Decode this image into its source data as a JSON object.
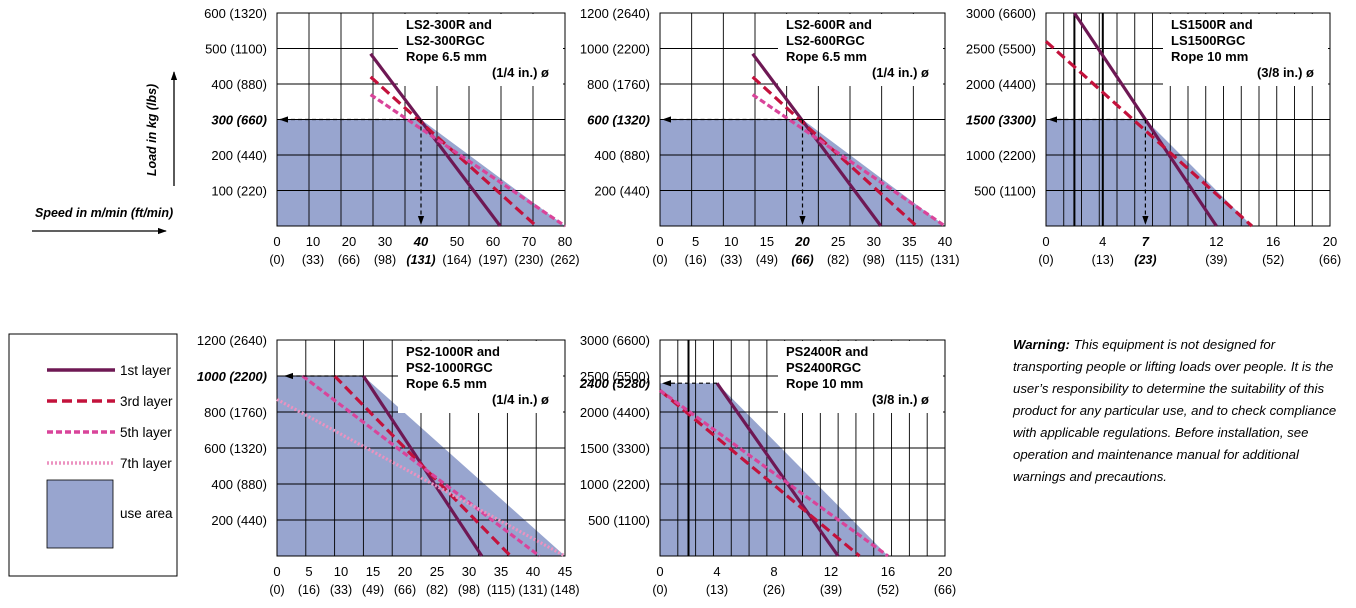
{
  "colors": {
    "use_area": "#98a5cf",
    "layer1": "#6e1854",
    "layer3": "#c3123c",
    "layer5": "#d9449a",
    "layer7": "#ec92c0",
    "grid": "#000000"
  },
  "labels": {
    "speed_axis": "Speed in m/min (ft/min)",
    "load_axis": "Load in kg (lbs)"
  },
  "legend": {
    "items": [
      {
        "label": "1st layer",
        "layer": "layer1"
      },
      {
        "label": "3rd layer",
        "layer": "layer3"
      },
      {
        "label": "5th layer",
        "layer": "layer5"
      },
      {
        "label": "7th layer",
        "layer": "layer7"
      }
    ],
    "use_area_label": "use area"
  },
  "warning": {
    "lead": "Warning:",
    "body": " This equipment is not designed for transporting people or lifting loads over people. It is the user’s responsibility to determine the suitability of this product for any particular use, and to check compliance with applicable regulations. Before installation, see operation and maintenance manual for additional warnings and precautions."
  },
  "chart_data": [
    {
      "type": "line",
      "title_lines": [
        "LS2-300R and",
        "LS2-300RGC",
        "Rope 6.5 mm",
        "(1/4 in.) ø"
      ],
      "xlim": [
        0,
        80
      ],
      "ylim": [
        0,
        600
      ],
      "x_ticks": [
        0,
        10,
        20,
        30,
        40,
        50,
        60,
        70,
        80
      ],
      "x_ticks_ft": [
        "(0)",
        "(33)",
        "(66)",
        "(98)",
        "(131)",
        "(164)",
        "(197)",
        "(230)",
        "(262)"
      ],
      "y_ticks": [
        100,
        200,
        300,
        400,
        500,
        600
      ],
      "y_tick_labels": [
        "100 (220)",
        "200 (440)",
        "300 (660)",
        "400 (880)",
        "500 (1100)",
        "600 (1320)"
      ],
      "rated_speed": 40,
      "rated_speed_label": "40",
      "rated_speed_ft": "(131)",
      "rated_load": 300,
      "rated_load_label": "300 (660)",
      "series": [
        {
          "layer": "layer1",
          "x": [
            26,
            62
          ],
          "y": [
            485,
            0
          ]
        },
        {
          "layer": "layer3",
          "x": [
            26,
            72
          ],
          "y": [
            420,
            0
          ]
        },
        {
          "layer": "layer5",
          "x": [
            26,
            80
          ],
          "y": [
            370,
            0
          ]
        }
      ],
      "use_area": {
        "x": [
          0,
          40,
          80
        ],
        "y": [
          300,
          300,
          0
        ]
      }
    },
    {
      "type": "line",
      "title_lines": [
        "LS2-600R and",
        "LS2-600RGC",
        "Rope 6.5 mm",
        "(1/4 in.) ø"
      ],
      "xlim": [
        0,
        40
      ],
      "ylim": [
        0,
        1200
      ],
      "x_ticks": [
        0,
        5,
        10,
        15,
        20,
        25,
        30,
        35,
        40
      ],
      "x_ticks_ft": [
        "(0)",
        "(16)",
        "(33)",
        "(49)",
        "(66)",
        "(82)",
        "(98)",
        "(115)",
        "(131)"
      ],
      "y_ticks": [
        200,
        400,
        600,
        800,
        1000,
        1200
      ],
      "y_tick_labels": [
        "200 (440)",
        "400 (880)",
        "600 (1320)",
        "800 (1760)",
        "1000 (2200)",
        "1200 (2640)"
      ],
      "rated_speed": 20,
      "rated_speed_label": "20",
      "rated_speed_ft": "(66)",
      "rated_load": 600,
      "rated_load_label": "600 (1320)",
      "series": [
        {
          "layer": "layer1",
          "x": [
            13,
            31
          ],
          "y": [
            970,
            0
          ]
        },
        {
          "layer": "layer3",
          "x": [
            13,
            36
          ],
          "y": [
            840,
            0
          ]
        },
        {
          "layer": "layer5",
          "x": [
            13,
            40
          ],
          "y": [
            740,
            0
          ]
        }
      ],
      "use_area": {
        "x": [
          0,
          20,
          40
        ],
        "y": [
          600,
          600,
          0
        ]
      }
    },
    {
      "type": "line",
      "title_lines": [
        "LS1500R and",
        "LS1500RGC",
        "Rope 10 mm",
        "(3/8 in.) ø"
      ],
      "xlim": [
        0,
        20
      ],
      "ylim": [
        0,
        3000
      ],
      "x_ticks": [
        0,
        4,
        7,
        12,
        16,
        20
      ],
      "x_ticks_ft": [
        "(0)",
        "(13)",
        "(23)",
        "(39)",
        "(52)",
        "(66)"
      ],
      "extra_vlines": [
        2,
        4
      ],
      "y_ticks": [
        500,
        1000,
        1500,
        2000,
        2500,
        3000
      ],
      "y_tick_labels": [
        "500 (1100)",
        "1000 (2200)",
        "1500 (3300)",
        "2000 (4400)",
        "2500 (5500)",
        "3000 (6600)"
      ],
      "rated_speed": 7,
      "rated_speed_label": "7",
      "rated_speed_ft": "(23)",
      "rated_load": 1500,
      "rated_load_label": "1500 (3300)",
      "series": [
        {
          "layer": "layer1",
          "x": [
            2,
            12
          ],
          "y": [
            3000,
            0
          ]
        },
        {
          "layer": "layer3",
          "x": [
            0,
            14.5
          ],
          "y": [
            2600,
            0
          ]
        }
      ],
      "use_area": {
        "x": [
          0,
          7,
          14.5
        ],
        "y": [
          1500,
          1500,
          0
        ]
      }
    },
    {
      "type": "line",
      "title_lines": [
        "PS2-1000R and",
        "PS2-1000RGC",
        "Rope 6.5 mm",
        "(1/4 in.) ø"
      ],
      "xlim": [
        0,
        45
      ],
      "ylim": [
        0,
        1200
      ],
      "x_ticks": [
        0,
        5,
        10,
        15,
        20,
        25,
        30,
        35,
        40,
        45
      ],
      "x_ticks_ft": [
        "(0)",
        "(16)",
        "(33)",
        "(49)",
        "(66)",
        "(82)",
        "(98)",
        "(115)",
        "(131)",
        "(148)"
      ],
      "y_ticks": [
        200,
        400,
        600,
        800,
        1000,
        1200
      ],
      "y_tick_labels": [
        "200 (440)",
        "400 (880)",
        "600 (1320)",
        "800 (1760)",
        "1000 (2200)",
        "1200 (2640)"
      ],
      "rated_speed": 13.5,
      "rated_speed_label": "",
      "rated_load": 1000,
      "rated_load_label": "1000 (2200)",
      "rated_load_arrow_to": 8,
      "series": [
        {
          "layer": "layer1",
          "x": [
            13.5,
            32
          ],
          "y": [
            1000,
            0
          ]
        },
        {
          "layer": "layer3",
          "x": [
            9,
            36.5
          ],
          "y": [
            1000,
            0
          ]
        },
        {
          "layer": "layer5",
          "x": [
            4,
            41
          ],
          "y": [
            1000,
            0
          ]
        },
        {
          "layer": "layer7",
          "x": [
            0,
            45
          ],
          "y": [
            870,
            0
          ]
        }
      ],
      "use_area": {
        "x": [
          0,
          13.5,
          45
        ],
        "y": [
          1000,
          1000,
          0
        ]
      }
    },
    {
      "type": "line",
      "title_lines": [
        "PS2400R and",
        "PS2400RGC",
        "Rope 10 mm",
        "(3/8 in.) ø"
      ],
      "xlim": [
        0,
        20
      ],
      "ylim": [
        0,
        3000
      ],
      "x_ticks": [
        0,
        4,
        8,
        12,
        16,
        20
      ],
      "x_ticks_ft": [
        "(0)",
        "(13)",
        "(26)",
        "(39)",
        "(52)",
        "(66)"
      ],
      "extra_vlines": [
        2
      ],
      "y_ticks": [
        500,
        1000,
        1500,
        2000,
        2500,
        3000
      ],
      "y_tick_labels": [
        "500 (1100)",
        "1000 (2200)",
        "1500 (3300)",
        "2000 (4400)",
        "2500 (5500)",
        "3000 (6600)"
      ],
      "rated_speed": 4,
      "rated_speed_label": "",
      "rated_load": 2400,
      "rated_load_label": "2400 (5280)",
      "series": [
        {
          "layer": "layer1",
          "x": [
            4,
            12.5
          ],
          "y": [
            2400,
            0
          ]
        },
        {
          "layer": "layer3",
          "x": [
            0,
            14
          ],
          "y": [
            2300,
            0
          ]
        },
        {
          "layer": "layer5",
          "x": [
            0,
            16
          ],
          "y": [
            2300,
            0
          ]
        }
      ],
      "use_area": {
        "x": [
          0,
          4,
          16
        ],
        "y": [
          2400,
          2400,
          0
        ]
      }
    }
  ]
}
